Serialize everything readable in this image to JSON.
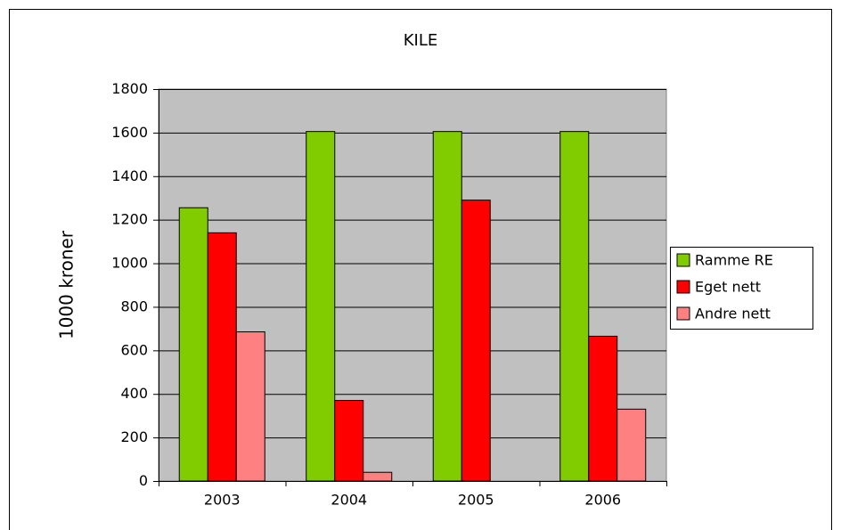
{
  "chart_data": {
    "type": "bar",
    "title": "KILE",
    "y_label": "1000 kroner",
    "categories": [
      "2003",
      "2004",
      "2005",
      "2006"
    ],
    "series": [
      {
        "name": "Ramme RE",
        "color": "#80cc00",
        "values": [
          1255,
          1605,
          1605,
          1605
        ]
      },
      {
        "name": "Eget nett",
        "color": "#ff0000",
        "values": [
          1140,
          370,
          1290,
          665
        ]
      },
      {
        "name": "Andre nett",
        "color": "#ff8080",
        "values": [
          685,
          40,
          0,
          330
        ]
      }
    ],
    "ylim": [
      0,
      1800
    ],
    "yticks": [
      0,
      200,
      400,
      600,
      800,
      1000,
      1200,
      1400,
      1600,
      1800
    ],
    "grid": true,
    "legend": "right",
    "plot_background": "#c0c0c0"
  }
}
